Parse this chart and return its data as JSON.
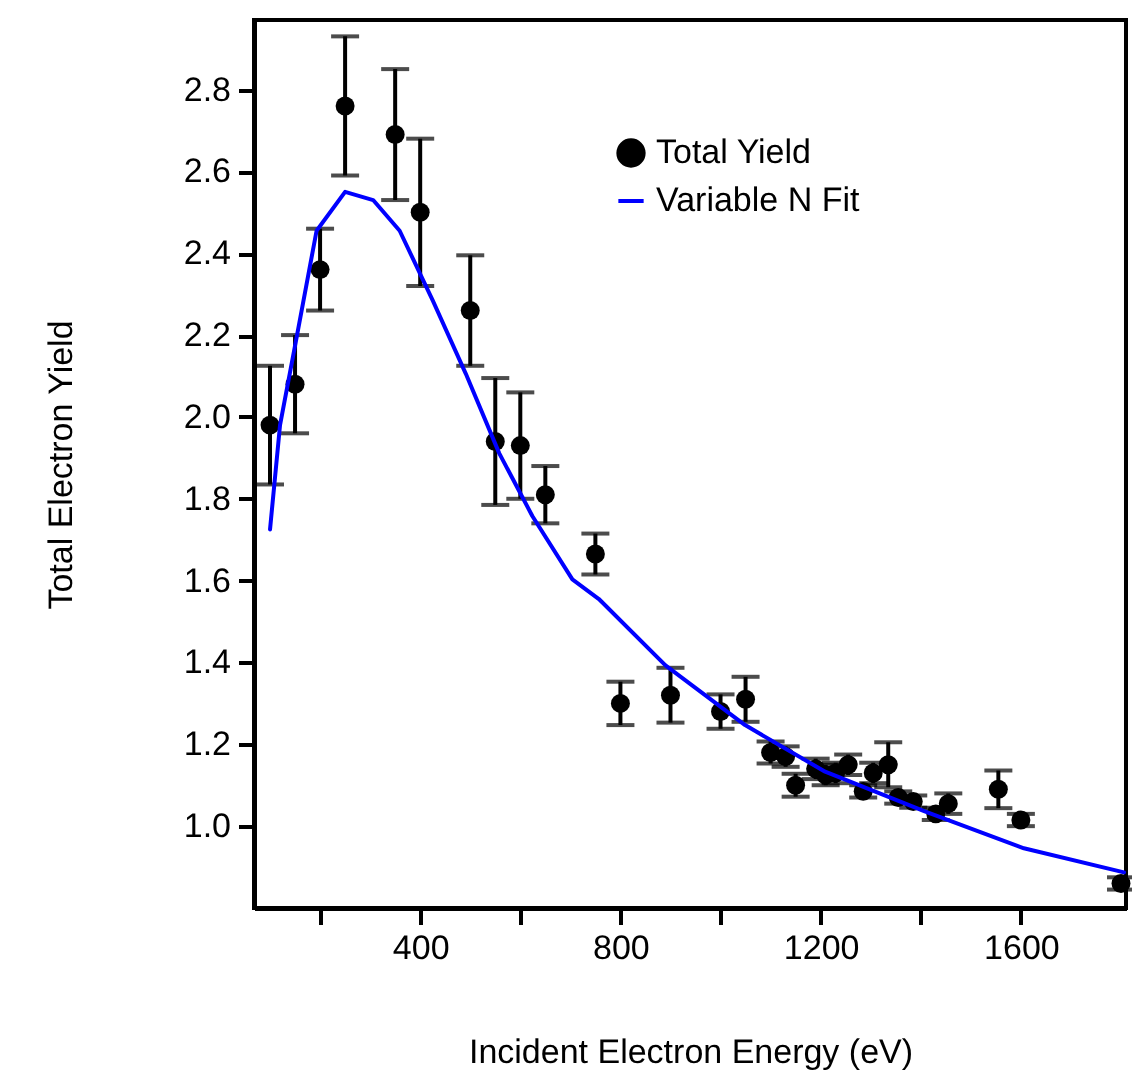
{
  "chart_data": {
    "type": "scatter",
    "xlabel": "Incident Electron Energy (eV)",
    "ylabel": "Total Electron Yield",
    "xlim": [
      68,
      1810
    ],
    "ylim": [
      0.8,
      2.97
    ],
    "xticks": [
      {
        "value": 200,
        "label": null
      },
      400,
      {
        "value": 600,
        "label": null
      },
      800,
      {
        "value": 1000,
        "label": null
      },
      1200,
      {
        "value": 1400,
        "label": null
      },
      1600
    ],
    "yticks": [
      {
        "value": 1,
        "label": "1.0"
      },
      1.2,
      1.4,
      1.6,
      1.8,
      {
        "value": 2,
        "label": "2.0"
      },
      2.2,
      2.4,
      2.6,
      2.8
    ],
    "legend": "top right",
    "series": [
      {
        "name": "Total Yield",
        "color": "#000000",
        "marker": "circle",
        "x": [
          100,
          150,
          200,
          250,
          350,
          400,
          500,
          550,
          600,
          650,
          750,
          800,
          900,
          1000,
          1050,
          1100,
          1130,
          1150,
          1190,
          1210,
          1230,
          1255,
          1285,
          1305,
          1335,
          1355,
          1385,
          1430,
          1455,
          1555,
          1600,
          1800
        ],
        "values": [
          1.98,
          2.08,
          2.36,
          2.76,
          2.69,
          2.5,
          2.26,
          1.94,
          1.93,
          1.81,
          1.665,
          1.3,
          1.32,
          1.28,
          1.31,
          1.18,
          1.17,
          1.1,
          1.14,
          1.125,
          1.13,
          1.15,
          1.085,
          1.13,
          1.15,
          1.07,
          1.06,
          1.03,
          1.055,
          1.09,
          1.015,
          0.86
        ],
        "errors": [
          0.145,
          0.12,
          0.1,
          0.17,
          0.16,
          0.18,
          0.135,
          0.155,
          0.13,
          0.07,
          0.05,
          0.053,
          0.067,
          0.042,
          0.055,
          0.027,
          0.025,
          0.028,
          0.025,
          0.025,
          0.025,
          0.025,
          0.015,
          0.025,
          0.055,
          0.015,
          0.015,
          0.015,
          0.025,
          0.046,
          0.015,
          0.015
        ]
      },
      {
        "name": "Variable N Fit",
        "type": "line",
        "color": "#0000ff",
        "marker": "none",
        "line_style": "solid",
        "x": [
          100,
          120,
          154,
          193,
          250,
          306,
          359,
          425,
          491,
          558,
          624,
          704,
          757,
          890,
          1049,
          1209,
          1408,
          1606,
          1806
        ],
        "values": [
          1.725,
          1.98,
          2.2,
          2.455,
          2.55,
          2.53,
          2.455,
          2.285,
          2.106,
          1.911,
          1.758,
          1.603,
          1.555,
          1.393,
          1.247,
          1.133,
          1.036,
          0.946,
          0.887
        ]
      }
    ]
  }
}
